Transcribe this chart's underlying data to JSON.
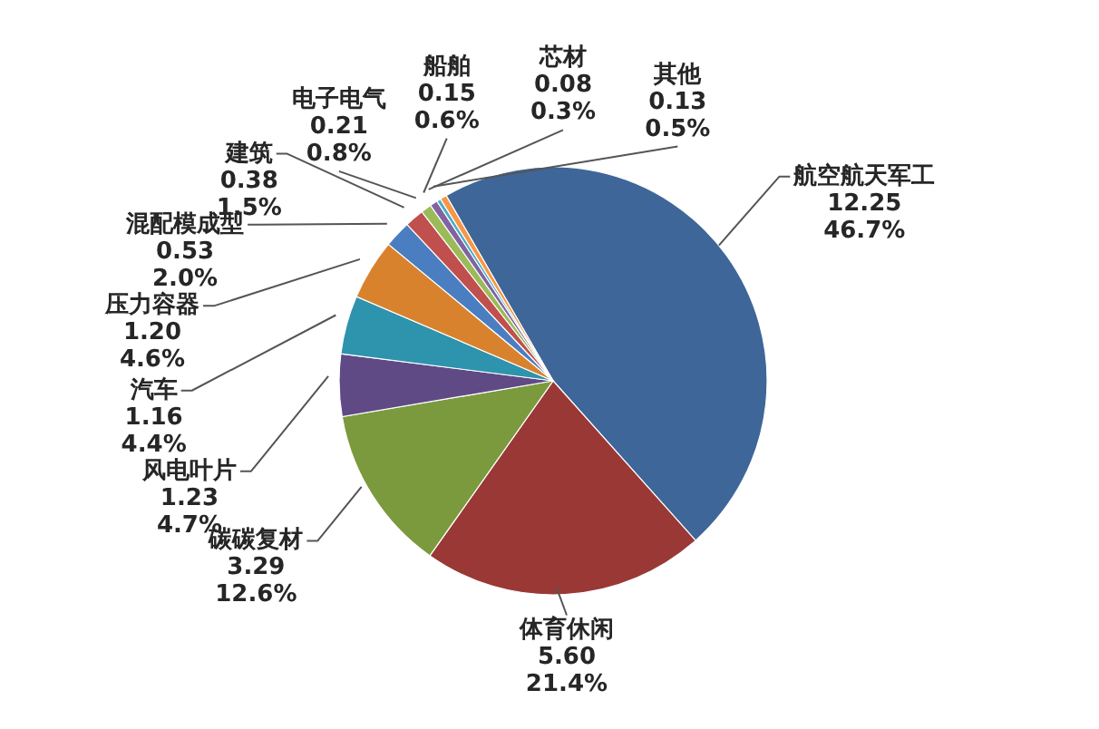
{
  "chart_data": {
    "type": "pie",
    "categories": [
      "航空航天军工",
      "体育休闲",
      "碳碳复材",
      "风电叶片",
      "汽车",
      "压力容器",
      "混配模成型",
      "建筑",
      "电子电气",
      "船舶",
      "芯材",
      "其他"
    ],
    "values": [
      12.25,
      5.6,
      3.29,
      1.23,
      1.16,
      1.2,
      0.53,
      0.38,
      0.21,
      0.15,
      0.08,
      0.13
    ],
    "colors": [
      "#3e6698",
      "#9a3836",
      "#7b9a3d",
      "#5f4a86",
      "#2e93ad",
      "#d9822e",
      "#4a7ec0",
      "#c0504d",
      "#9bbb59",
      "#8064a2",
      "#4bacc6",
      "#f79646"
    ],
    "value_labels": [
      "12.25\n46.7%",
      "5.60\n21.4%",
      "3.29\n12.6%",
      "1.23\n4.7%",
      "1.16\n4.4%",
      "1.20\n4.6%",
      "0.53\n2.0%",
      "0.38\n1.5%",
      "0.21\n0.8%",
      "0.15\n0.6%",
      "0.08\n0.3%",
      "0.13\n0.5%"
    ]
  }
}
